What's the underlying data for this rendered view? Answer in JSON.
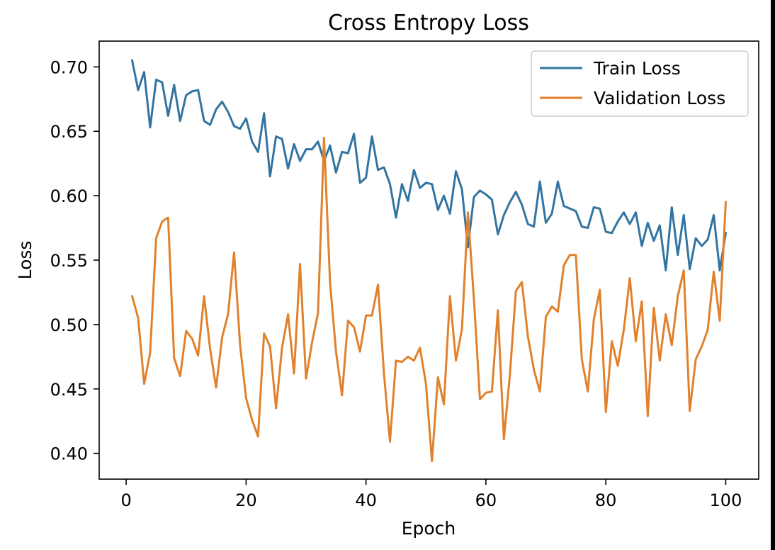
{
  "chart_data": {
    "type": "line",
    "title": "Cross Entropy Loss",
    "xlabel": "Epoch",
    "ylabel": "Loss",
    "xlim": [
      -4.5,
      105.5
    ],
    "ylim": [
      0.38,
      0.72
    ],
    "xticks": [
      0,
      20,
      40,
      60,
      80,
      100
    ],
    "xtick_labels": [
      "0",
      "20",
      "40",
      "60",
      "80",
      "100"
    ],
    "yticks": [
      0.4,
      0.45,
      0.5,
      0.55,
      0.6,
      0.65,
      0.7
    ],
    "ytick_labels": [
      "0.40",
      "0.45",
      "0.50",
      "0.55",
      "0.60",
      "0.65",
      "0.70"
    ],
    "grid": false,
    "legend_position": "upper right",
    "x": [
      1,
      2,
      3,
      4,
      5,
      6,
      7,
      8,
      9,
      10,
      11,
      12,
      13,
      14,
      15,
      16,
      17,
      18,
      19,
      20,
      21,
      22,
      23,
      24,
      25,
      26,
      27,
      28,
      29,
      30,
      31,
      32,
      33,
      34,
      35,
      36,
      37,
      38,
      39,
      40,
      41,
      42,
      43,
      44,
      45,
      46,
      47,
      48,
      49,
      50,
      51,
      52,
      53,
      54,
      55,
      56,
      57,
      58,
      59,
      60,
      61,
      62,
      63,
      64,
      65,
      66,
      67,
      68,
      69,
      70,
      71,
      72,
      73,
      74,
      75,
      76,
      77,
      78,
      79,
      80,
      81,
      82,
      83,
      84,
      85,
      86,
      87,
      88,
      89,
      90,
      91,
      92,
      93,
      94,
      95,
      96,
      97,
      98,
      99,
      100
    ],
    "series": [
      {
        "name": "Train Loss",
        "color": "#3274a1",
        "values": [
          0.705,
          0.682,
          0.696,
          0.653,
          0.69,
          0.688,
          0.662,
          0.686,
          0.658,
          0.678,
          0.681,
          0.682,
          0.658,
          0.655,
          0.667,
          0.673,
          0.665,
          0.654,
          0.652,
          0.66,
          0.642,
          0.634,
          0.664,
          0.615,
          0.646,
          0.644,
          0.621,
          0.64,
          0.627,
          0.636,
          0.636,
          0.642,
          0.627,
          0.639,
          0.618,
          0.634,
          0.633,
          0.648,
          0.61,
          0.614,
          0.646,
          0.62,
          0.622,
          0.609,
          0.583,
          0.609,
          0.596,
          0.62,
          0.606,
          0.61,
          0.609,
          0.589,
          0.6,
          0.586,
          0.619,
          0.605,
          0.56,
          0.599,
          0.604,
          0.601,
          0.597,
          0.57,
          0.585,
          0.595,
          0.603,
          0.593,
          0.578,
          0.576,
          0.611,
          0.579,
          0.586,
          0.611,
          0.592,
          0.59,
          0.588,
          0.576,
          0.575,
          0.591,
          0.59,
          0.572,
          0.571,
          0.58,
          0.587,
          0.578,
          0.587,
          0.561,
          0.579,
          0.565,
          0.577,
          0.542,
          0.591,
          0.554,
          0.585,
          0.543,
          0.567,
          0.561,
          0.566,
          0.585,
          0.542,
          0.571
        ]
      },
      {
        "name": "Validation Loss",
        "color": "#e1812c",
        "values": [
          0.522,
          0.505,
          0.454,
          0.478,
          0.567,
          0.58,
          0.583,
          0.474,
          0.46,
          0.495,
          0.489,
          0.476,
          0.522,
          0.481,
          0.451,
          0.49,
          0.508,
          0.556,
          0.484,
          0.443,
          0.426,
          0.413,
          0.493,
          0.483,
          0.435,
          0.482,
          0.508,
          0.462,
          0.547,
          0.458,
          0.486,
          0.509,
          0.645,
          0.533,
          0.479,
          0.445,
          0.503,
          0.498,
          0.479,
          0.507,
          0.507,
          0.531,
          0.462,
          0.409,
          0.472,
          0.471,
          0.475,
          0.472,
          0.482,
          0.454,
          0.394,
          0.459,
          0.438,
          0.522,
          0.472,
          0.496,
          0.587,
          0.52,
          0.442,
          0.447,
          0.448,
          0.511,
          0.411,
          0.461,
          0.526,
          0.533,
          0.491,
          0.465,
          0.448,
          0.506,
          0.514,
          0.51,
          0.546,
          0.554,
          0.554,
          0.473,
          0.448,
          0.504,
          0.527,
          0.432,
          0.487,
          0.468,
          0.496,
          0.536,
          0.487,
          0.518,
          0.429,
          0.513,
          0.472,
          0.508,
          0.484,
          0.522,
          0.542,
          0.433,
          0.473,
          0.483,
          0.496,
          0.541,
          0.503,
          0.595
        ]
      }
    ]
  }
}
